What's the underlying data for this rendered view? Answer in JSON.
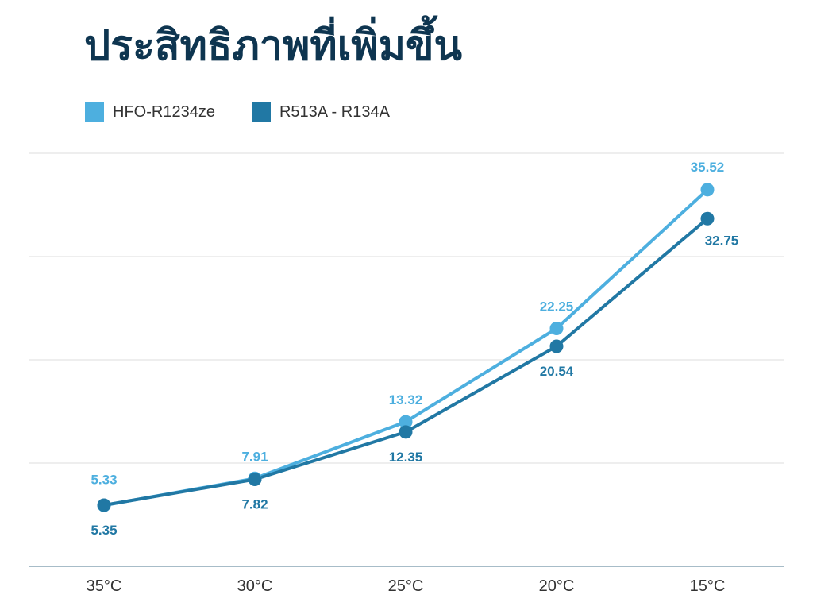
{
  "title": "ประสิทธิภาพที่เพิ่มขึ้น",
  "chart_data": {
    "type": "line",
    "title": "ประสิทธิภาพที่เพิ่มขึ้น",
    "xlabel": "",
    "ylabel": "",
    "categories": [
      "35°C",
      "30°C",
      "25°C",
      "20°C",
      "15°C"
    ],
    "series": [
      {
        "name": "HFO-R1234ze",
        "color": "#4dafdf",
        "values": [
          5.33,
          7.91,
          13.32,
          22.25,
          35.52
        ],
        "value_labels": [
          "5.33",
          "7.91",
          "13.32",
          "22.25",
          "35.52"
        ]
      },
      {
        "name": "R513A - R134A",
        "color": "#2178a4",
        "values": [
          5.35,
          7.82,
          12.35,
          20.54,
          32.75
        ],
        "value_labels": [
          "5.35",
          "7.82",
          "12.35",
          "20.54",
          "32.75"
        ]
      }
    ],
    "ylim": [
      -0.5,
      39
    ],
    "grid": true,
    "legend_position": "top-left",
    "tick_color": "#333333",
    "grid_color": "#dddddd",
    "axis_color": "#8aa5b5"
  }
}
